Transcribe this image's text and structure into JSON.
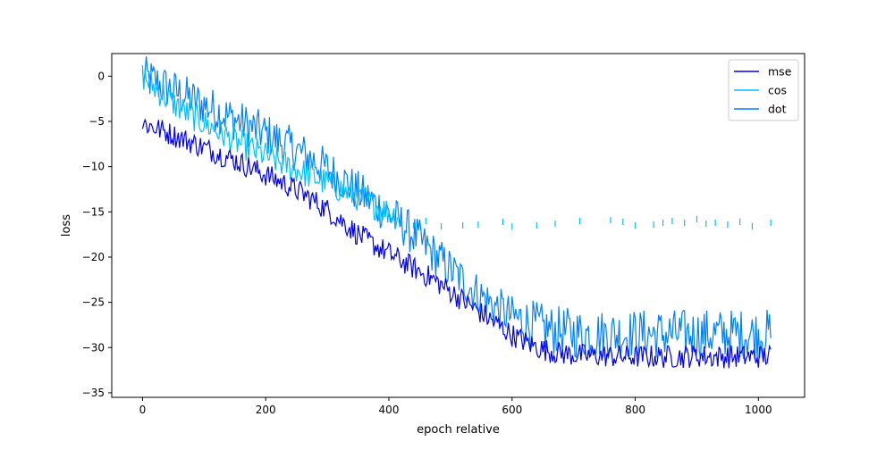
{
  "chart_data": {
    "type": "line",
    "title": "",
    "xlabel": "epoch relative",
    "ylabel": "loss",
    "xlim": [
      -50,
      1075
    ],
    "ylim": [
      -35.5,
      2.5
    ],
    "xticks": [
      0,
      200,
      400,
      600,
      800,
      1000
    ],
    "yticks": [
      0,
      -5,
      -10,
      -15,
      -20,
      -25,
      -30,
      -35
    ],
    "grid": false,
    "legend_position": "top-right",
    "series": [
      {
        "name": "mse",
        "color": "#0000ee",
        "x": [
          0,
          25,
          50,
          75,
          100,
          125,
          150,
          175,
          200,
          225,
          250,
          275,
          300,
          325,
          350,
          375,
          400,
          425,
          450,
          475,
          500,
          525,
          550,
          575,
          600,
          625,
          650,
          675,
          700,
          725,
          750,
          775,
          800,
          825,
          850,
          875,
          900,
          925,
          950,
          975,
          1000,
          1020
        ],
        "y": [
          -5.2,
          -5.8,
          -6.5,
          -7.2,
          -7.9,
          -8.6,
          -9.3,
          -10.1,
          -10.9,
          -11.7,
          -12.6,
          -13.6,
          -14.8,
          -16.1,
          -17.5,
          -18.6,
          -19.6,
          -20.6,
          -21.6,
          -22.6,
          -23.8,
          -25.0,
          -26.2,
          -27.4,
          -28.6,
          -29.5,
          -30.2,
          -30.6,
          -30.8,
          -30.9,
          -30.9,
          -31.0,
          -31.0,
          -31.0,
          -31.0,
          -31.0,
          -30.9,
          -31.0,
          -31.0,
          -31.0,
          -31.0,
          -30.9
        ]
      },
      {
        "name": "cos",
        "color": "#00bfff",
        "x": [
          0,
          25,
          50,
          75,
          100,
          125,
          150,
          175,
          200,
          225,
          250,
          275,
          300,
          325,
          350,
          375,
          400,
          415
        ],
        "y": [
          0.0,
          -1.6,
          -3.0,
          -4.2,
          -5.2,
          -6.2,
          -7.2,
          -8.0,
          -8.8,
          -9.6,
          -10.3,
          -11.1,
          -11.8,
          -12.6,
          -13.4,
          -14.2,
          -15.0,
          -15.6
        ],
        "sparse_x": [
          420,
          440,
          460,
          485,
          520,
          545,
          585,
          600,
          640,
          670,
          710,
          760,
          780,
          800,
          830,
          845,
          860,
          880,
          900,
          915,
          930,
          950,
          970,
          990,
          1020
        ],
        "sparse_y": [
          -16.2,
          -16.5,
          -16.0,
          -16.6,
          -16.5,
          -16.4,
          -16.1,
          -16.6,
          -16.5,
          -16.3,
          -16.0,
          -15.9,
          -16.1,
          -16.5,
          -16.4,
          -16.2,
          -16.0,
          -16.2,
          -15.8,
          -16.3,
          -16.2,
          -16.4,
          -16.1,
          -16.6,
          -16.2
        ]
      },
      {
        "name": "dot",
        "color": "#0080ff",
        "x": [
          0,
          25,
          50,
          75,
          100,
          125,
          150,
          175,
          200,
          225,
          250,
          275,
          300,
          325,
          350,
          375,
          400,
          425,
          450,
          475,
          500,
          525,
          550,
          575,
          600,
          625,
          650,
          675,
          700,
          725,
          750,
          775,
          800,
          825,
          850,
          875,
          900,
          925,
          950,
          975,
          1000,
          1020
        ],
        "y": [
          0.0,
          -0.8,
          -1.6,
          -2.4,
          -3.2,
          -4.0,
          -4.8,
          -5.6,
          -6.4,
          -7.3,
          -8.2,
          -9.2,
          -10.3,
          -11.5,
          -12.8,
          -14.0,
          -15.2,
          -16.6,
          -18.2,
          -19.8,
          -21.4,
          -22.9,
          -24.3,
          -25.6,
          -26.6,
          -27.3,
          -27.9,
          -28.2,
          -28.4,
          -28.5,
          -28.5,
          -28.5,
          -28.5,
          -28.5,
          -28.5,
          -28.5,
          -28.5,
          -28.5,
          -28.5,
          -28.5,
          -28.5,
          -28.5
        ]
      }
    ]
  }
}
